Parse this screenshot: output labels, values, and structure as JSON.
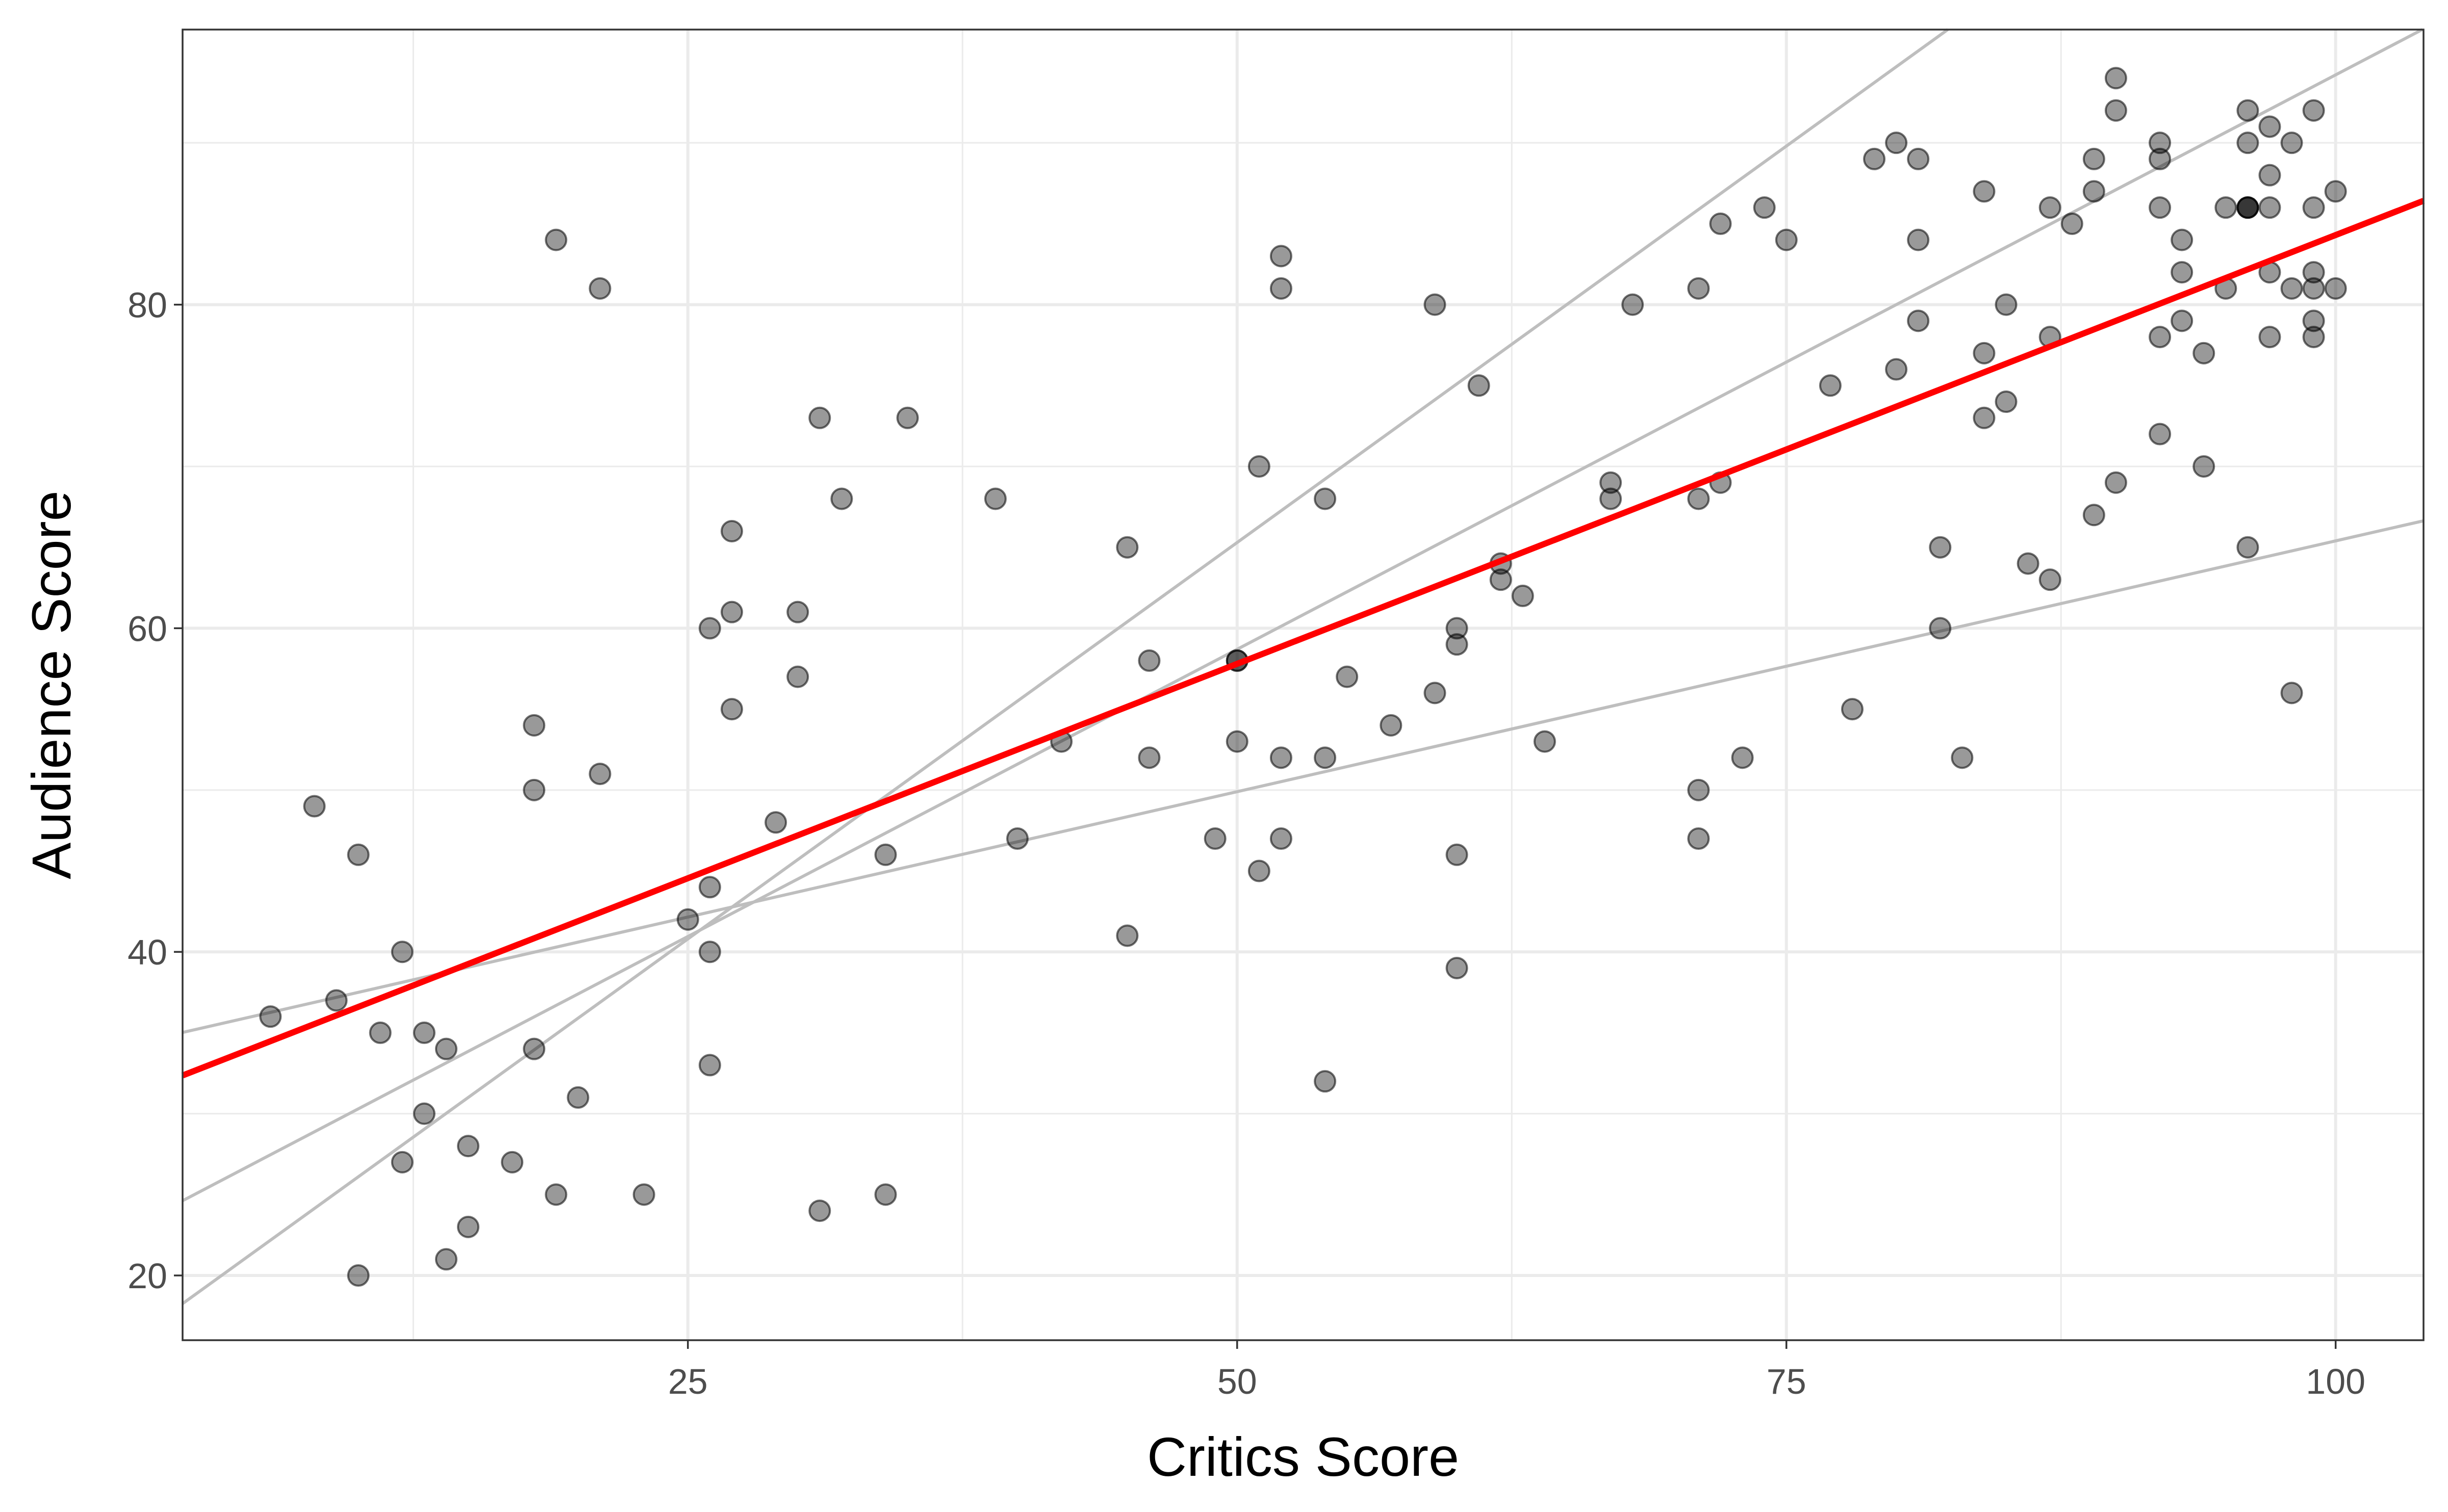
{
  "chart_data": {
    "type": "scatter",
    "title": "",
    "xlabel": "Critics Score",
    "ylabel": "Audience Score",
    "xlim": [
      2,
      104
    ],
    "ylim": [
      16,
      97
    ],
    "x_ticks": [
      25,
      50,
      75,
      100
    ],
    "y_ticks": [
      20,
      40,
      60,
      80
    ],
    "x_tick_labels": [
      "25",
      "50",
      "75",
      "100"
    ],
    "y_tick_labels": [
      "20",
      "40",
      "60",
      "80"
    ],
    "grid": true,
    "legend": "none",
    "colors": {
      "points": "#000000",
      "points_opacity": 0.4,
      "fit_line": "#ff0000",
      "reference_lines": "#bebebe",
      "grid": "#ebebeb",
      "panel_border": "#333333"
    },
    "points": [
      [
        6,
        36
      ],
      [
        8,
        49
      ],
      [
        9,
        37
      ],
      [
        10,
        46
      ],
      [
        10,
        20
      ],
      [
        11,
        35
      ],
      [
        12,
        40
      ],
      [
        12,
        27
      ],
      [
        13,
        35
      ],
      [
        13,
        30
      ],
      [
        14,
        34
      ],
      [
        14,
        21
      ],
      [
        15,
        28
      ],
      [
        15,
        23
      ],
      [
        17,
        27
      ],
      [
        18,
        54
      ],
      [
        18,
        50
      ],
      [
        18,
        34
      ],
      [
        19,
        84
      ],
      [
        19,
        25
      ],
      [
        20,
        31
      ],
      [
        21,
        81
      ],
      [
        21,
        51
      ],
      [
        23,
        25
      ],
      [
        25,
        42
      ],
      [
        26,
        60
      ],
      [
        26,
        44
      ],
      [
        26,
        40
      ],
      [
        26,
        33
      ],
      [
        27,
        66
      ],
      [
        27,
        61
      ],
      [
        27,
        55
      ],
      [
        29,
        48
      ],
      [
        30,
        61
      ],
      [
        30,
        57
      ],
      [
        31,
        73
      ],
      [
        31,
        24
      ],
      [
        32,
        68
      ],
      [
        34,
        46
      ],
      [
        34,
        25
      ],
      [
        35,
        73
      ],
      [
        39,
        68
      ],
      [
        40,
        47
      ],
      [
        42,
        53
      ],
      [
        45,
        65
      ],
      [
        45,
        41
      ],
      [
        46,
        58
      ],
      [
        46,
        52
      ],
      [
        49,
        47
      ],
      [
        50,
        58
      ],
      [
        50,
        58
      ],
      [
        50,
        53
      ],
      [
        51,
        70
      ],
      [
        51,
        45
      ],
      [
        52,
        83
      ],
      [
        52,
        81
      ],
      [
        52,
        52
      ],
      [
        52,
        47
      ],
      [
        54,
        68
      ],
      [
        54,
        52
      ],
      [
        54,
        32
      ],
      [
        55,
        57
      ],
      [
        57,
        54
      ],
      [
        59,
        80
      ],
      [
        59,
        56
      ],
      [
        60,
        60
      ],
      [
        60,
        59
      ],
      [
        60,
        46
      ],
      [
        60,
        39
      ],
      [
        61,
        75
      ],
      [
        62,
        64
      ],
      [
        62,
        63
      ],
      [
        63,
        62
      ],
      [
        64,
        53
      ],
      [
        67,
        69
      ],
      [
        67,
        68
      ],
      [
        68,
        80
      ],
      [
        71,
        81
      ],
      [
        71,
        68
      ],
      [
        71,
        50
      ],
      [
        71,
        47
      ],
      [
        72,
        85
      ],
      [
        72,
        69
      ],
      [
        73,
        52
      ],
      [
        74,
        86
      ],
      [
        75,
        84
      ],
      [
        77,
        75
      ],
      [
        78,
        55
      ],
      [
        79,
        89
      ],
      [
        80,
        90
      ],
      [
        80,
        76
      ],
      [
        81,
        89
      ],
      [
        81,
        84
      ],
      [
        81,
        79
      ],
      [
        82,
        65
      ],
      [
        82,
        60
      ],
      [
        83,
        52
      ],
      [
        84,
        87
      ],
      [
        84,
        77
      ],
      [
        84,
        73
      ],
      [
        85,
        80
      ],
      [
        85,
        74
      ],
      [
        86,
        64
      ],
      [
        87,
        86
      ],
      [
        87,
        78
      ],
      [
        87,
        63
      ],
      [
        88,
        85
      ],
      [
        89,
        89
      ],
      [
        89,
        87
      ],
      [
        89,
        67
      ],
      [
        90,
        94
      ],
      [
        90,
        92
      ],
      [
        90,
        69
      ],
      [
        92,
        90
      ],
      [
        92,
        89
      ],
      [
        92,
        86
      ],
      [
        92,
        78
      ],
      [
        92,
        72
      ],
      [
        93,
        84
      ],
      [
        93,
        82
      ],
      [
        93,
        79
      ],
      [
        94,
        77
      ],
      [
        94,
        70
      ],
      [
        95,
        86
      ],
      [
        95,
        81
      ],
      [
        96,
        92
      ],
      [
        96,
        90
      ],
      [
        96,
        86
      ],
      [
        96,
        86
      ],
      [
        96,
        86
      ],
      [
        96,
        65
      ],
      [
        97,
        91
      ],
      [
        97,
        88
      ],
      [
        97,
        86
      ],
      [
        97,
        82
      ],
      [
        97,
        78
      ],
      [
        98,
        90
      ],
      [
        98,
        81
      ],
      [
        98,
        56
      ],
      [
        99,
        92
      ],
      [
        99,
        86
      ],
      [
        99,
        82
      ],
      [
        99,
        81
      ],
      [
        99,
        79
      ],
      [
        99,
        78
      ],
      [
        100,
        87
      ],
      [
        100,
        81
      ]
    ],
    "fit_line": {
      "intercept": 31.3,
      "slope": 0.53
    },
    "reference_lines": [
      {
        "intercept": 34.4,
        "slope": 0.31
      },
      {
        "intercept": 23.2,
        "slope": 0.71
      },
      {
        "intercept": 16.3,
        "slope": 0.98
      }
    ]
  }
}
